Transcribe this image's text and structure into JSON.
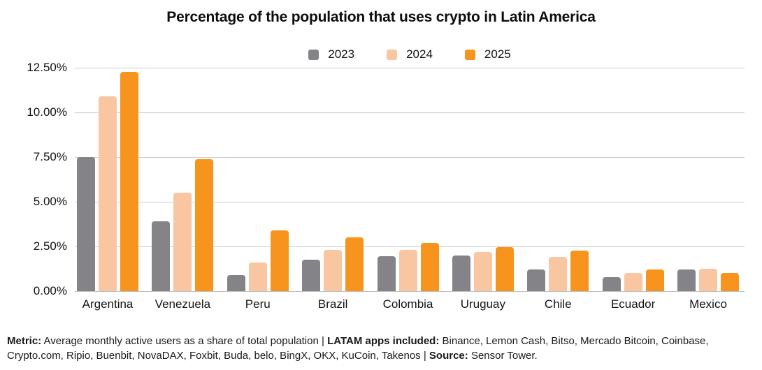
{
  "chart_data": {
    "type": "bar",
    "title": "Percentage of the population that uses crypto in Latin America",
    "categories": [
      "Argentina",
      "Venezuela",
      "Peru",
      "Brazil",
      "Colombia",
      "Uruguay",
      "Chile",
      "Ecuador",
      "Mexico"
    ],
    "series": [
      {
        "name": "2023",
        "color": "#838388",
        "values": [
          7.5,
          3.9,
          0.9,
          1.75,
          1.95,
          2.0,
          1.2,
          0.8,
          1.2
        ]
      },
      {
        "name": "2024",
        "color": "#f9c6a2",
        "values": [
          10.9,
          5.5,
          1.6,
          2.3,
          2.3,
          2.2,
          1.9,
          1.0,
          1.25
        ]
      },
      {
        "name": "2025",
        "color": "#f7941e",
        "values": [
          12.25,
          7.4,
          3.4,
          3.0,
          2.7,
          2.45,
          2.25,
          1.2,
          1.0
        ]
      }
    ],
    "xlabel": "",
    "ylabel": "",
    "ylim": [
      0,
      12.5
    ],
    "y_ticks": [
      "0.00%",
      "2.50%",
      "5.00%",
      "7.50%",
      "10.00%",
      "12.50%"
    ],
    "grid": true,
    "legend_position": "top-center"
  },
  "footer": {
    "segments": [
      {
        "label": "Metric:",
        "text": " Average monthly active users as a share of total population | "
      },
      {
        "label": "LATAM apps included:",
        "text": " Binance, Lemon Cash, Bitso, Mercado Bitcoin, Coinbase, Crypto.com, Ripio, Buenbit, NovaDAX, Foxbit, Buda, belo, BingX, OKX, KuCoin, Takenos | "
      },
      {
        "label": "Source:",
        "text": " Sensor Tower."
      }
    ]
  }
}
